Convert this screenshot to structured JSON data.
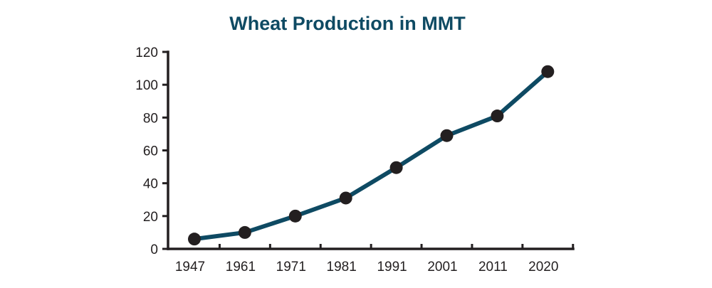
{
  "chart_data": {
    "type": "line",
    "title": "Wheat Production in MMT",
    "xlabel": "",
    "ylabel": "",
    "categories": [
      "1947",
      "1961",
      "1971",
      "1981",
      "1991",
      "2001",
      "2011",
      "2020"
    ],
    "series": [
      {
        "values": [
          6,
          10,
          20,
          31,
          49.5,
          69,
          81,
          108
        ]
      }
    ],
    "ylim": [
      0,
      120
    ],
    "yticks": [
      0,
      20,
      40,
      60,
      80,
      100,
      120
    ],
    "grid": false,
    "legend": "none",
    "colors": {
      "title": "#0e4a63",
      "line": "#0e4a63",
      "marker": "#231f20",
      "axis": "#231f20",
      "tick_label": "#231f20"
    }
  }
}
